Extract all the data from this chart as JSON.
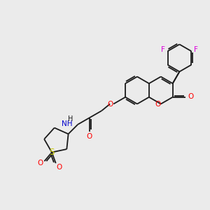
{
  "background_color": "#ebebeb",
  "bond_color": "#1a1a1a",
  "atom_colors": {
    "O": "#ff0000",
    "N": "#0000cd",
    "S": "#cccc00",
    "F": "#dd00dd",
    "H": "#1a1a1a",
    "C": "#1a1a1a"
  },
  "figsize": [
    3.0,
    3.0
  ],
  "dpi": 100,
  "bond_lw": 1.3,
  "font_size": 7.5
}
